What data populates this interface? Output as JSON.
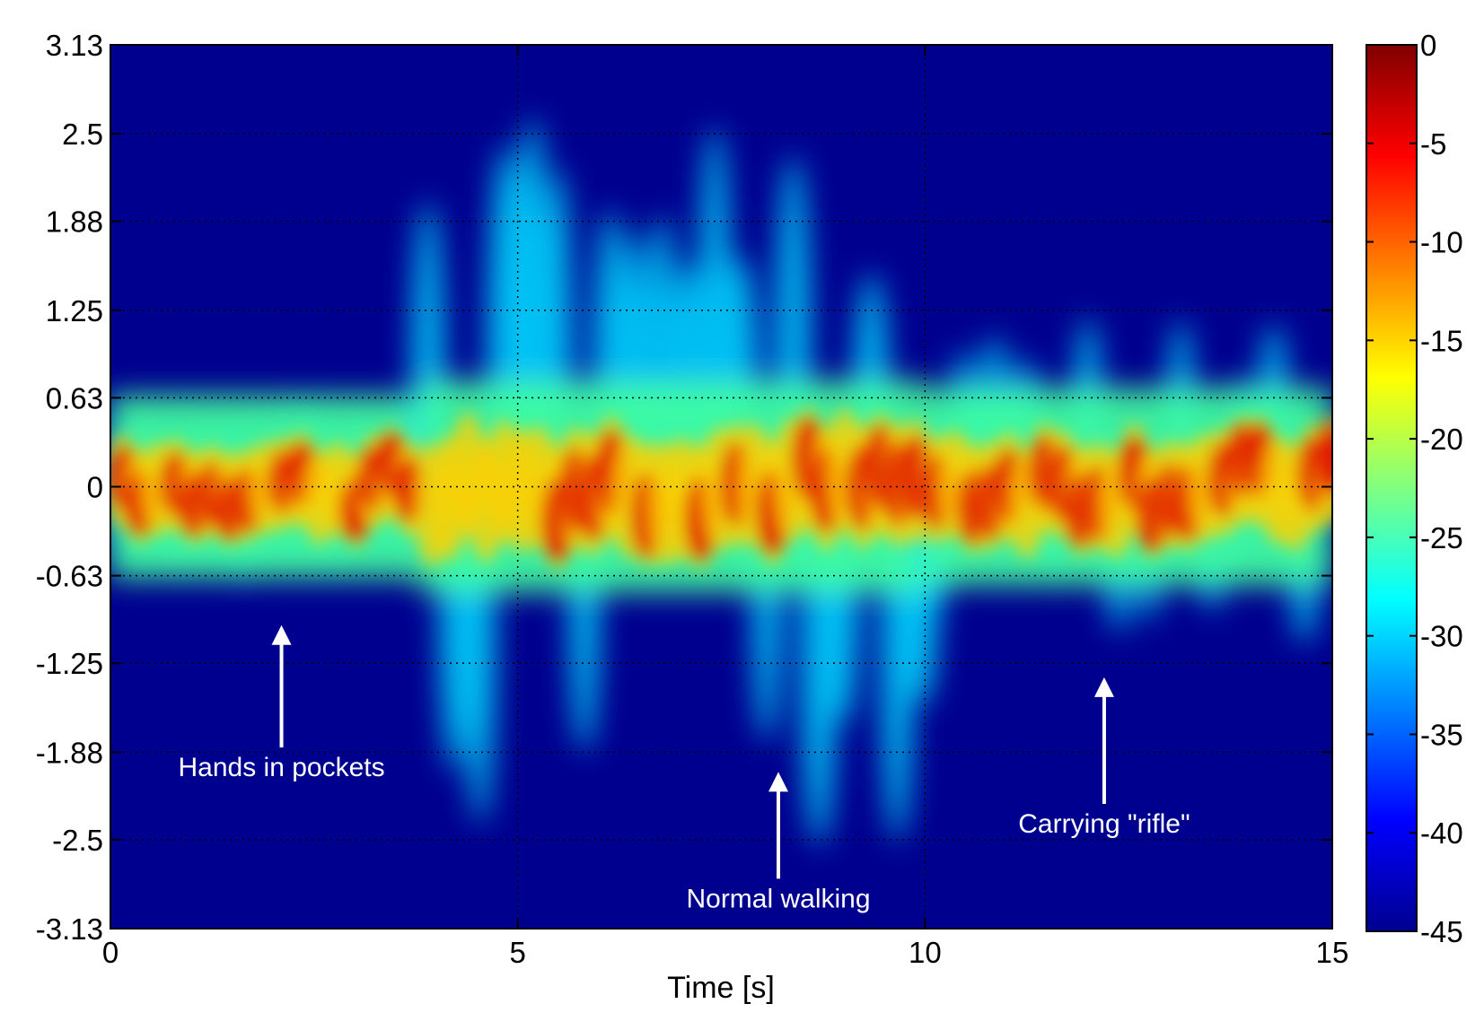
{
  "chart_data": {
    "type": "heatmap",
    "title": "",
    "xlabel": "Time [s]",
    "ylabel": "",
    "xlim": [
      0,
      15
    ],
    "ylim": [
      -3.13,
      3.13
    ],
    "x_ticks": [
      {
        "value": 0,
        "label": "0"
      },
      {
        "value": 5,
        "label": "5"
      },
      {
        "value": 10,
        "label": "10"
      },
      {
        "value": 15,
        "label": "15"
      }
    ],
    "y_ticks": [
      {
        "value": 3.13,
        "label": "3.13"
      },
      {
        "value": 2.5,
        "label": "2.5"
      },
      {
        "value": 1.88,
        "label": "1.88"
      },
      {
        "value": 1.25,
        "label": "1.25"
      },
      {
        "value": 0.63,
        "label": "0.63"
      },
      {
        "value": 0,
        "label": "0"
      },
      {
        "value": -0.63,
        "label": "-0.63"
      },
      {
        "value": -1.25,
        "label": "-1.25"
      },
      {
        "value": -1.88,
        "label": "-1.88"
      },
      {
        "value": -2.5,
        "label": "-2.5"
      },
      {
        "value": -3.13,
        "label": "-3.13"
      }
    ],
    "grid": true,
    "colormap": "jet",
    "colorbar": {
      "range": [
        -45,
        0
      ],
      "ticks": [
        {
          "value": 0,
          "label": "0"
        },
        {
          "value": -5,
          "label": "-5"
        },
        {
          "value": -10,
          "label": "-10"
        },
        {
          "value": -15,
          "label": "-15"
        },
        {
          "value": -20,
          "label": "-20"
        },
        {
          "value": -25,
          "label": "-25"
        },
        {
          "value": -30,
          "label": "-30"
        },
        {
          "value": -35,
          "label": "-35"
        },
        {
          "value": -40,
          "label": "-40"
        },
        {
          "value": -45,
          "label": "-45"
        }
      ]
    },
    "colors": {
      "background": "#00008f",
      "annotation_text": "#ffffff",
      "grid": "#000000"
    },
    "segments": [
      {
        "x_range": [
          0,
          3.8
        ],
        "activity": "Hands in pockets",
        "core_halfwidth": 0.3,
        "outer_extent": 0.8
      },
      {
        "x_range": [
          3.8,
          10
        ],
        "activity": "Normal walking",
        "core_halfwidth": 0.4,
        "outer_extent": 2.7
      },
      {
        "x_range": [
          10,
          15
        ],
        "activity": "Carrying \"rifle\"",
        "core_halfwidth": 0.35,
        "outer_extent": 1.2
      }
    ],
    "annotations": [
      {
        "text": "Hands in pockets",
        "x": 2.1,
        "y": -2.05,
        "arrow_tip": {
          "x": 2.1,
          "y": -0.98
        }
      },
      {
        "text": "Normal walking",
        "x": 8.2,
        "y": -2.98,
        "arrow_tip": {
          "x": 8.2,
          "y": -2.02
        }
      },
      {
        "text": "Carrying \"rifle\"",
        "x": 12.2,
        "y": -2.45,
        "arrow_tip": {
          "x": 12.2,
          "y": -1.35
        }
      }
    ]
  }
}
